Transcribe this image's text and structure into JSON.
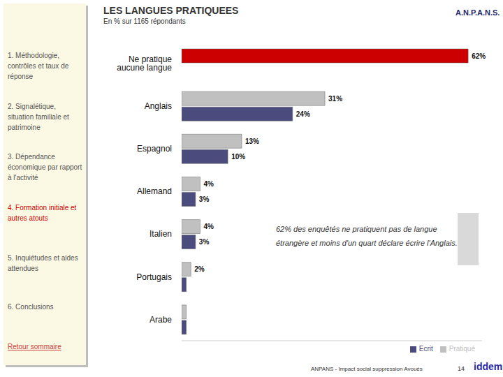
{
  "header": {
    "title": "LES LANGUES PRATIQUEES",
    "subtitle": "En % sur 1165 répondants",
    "brand": "A.N.P.A.N.S."
  },
  "sidebar": {
    "items": [
      {
        "text": "1. Méthodologie, contrôles et taux de réponse",
        "highlight": false
      },
      {
        "text": "2. Signalétique, situation familiale et patrimoine",
        "highlight": false
      },
      {
        "text": "3. Dépendance économique par rapport à l'activité",
        "highlight": false
      },
      {
        "text": "4. Formation initiale et autres atouts",
        "highlight": true
      },
      {
        "text": "5. Inquiétudes et aides attendues",
        "highlight": false
      },
      {
        "text": "6. Conclusions",
        "highlight": false
      }
    ],
    "link": "Retour sommaire"
  },
  "chart_data": {
    "type": "bar",
    "orientation": "horizontal",
    "categories": [
      "Ne pratique aucune langue",
      "Anglais",
      "Espagnol",
      "Allemand",
      "Italien",
      "Portugais",
      "Arabe"
    ],
    "series": [
      {
        "name": "Pratiqué",
        "color": "#c0c0c0",
        "colors": [
          "#cc0000",
          "#c0c0c0",
          "#c0c0c0",
          "#c0c0c0",
          "#c0c0c0",
          "#c0c0c0",
          "#c0c0c0"
        ],
        "values": [
          62,
          31,
          13,
          4,
          4,
          2,
          1
        ],
        "value_labels": [
          "62%",
          "31%",
          "13%",
          "4%",
          "4%",
          "2%",
          null
        ]
      },
      {
        "name": "Ecrit",
        "color": "#4b4b7d",
        "values": [
          null,
          24,
          10,
          3,
          3,
          1,
          1
        ],
        "value_labels": [
          null,
          "24%",
          "10%",
          "3%",
          "3%",
          null,
          null
        ]
      }
    ],
    "xlim": [
      0,
      65
    ],
    "data_labels": true,
    "tick_labels": "y",
    "legend": "bottom right",
    "grid": false
  },
  "annotation": "62% des enquêtés ne pratiquent pas de langue étrangère et moins d'un quart déclare écrire l'Anglais.",
  "footer": {
    "text": "ANPANS - Impact social suppression Avoués",
    "page": 14,
    "logo": "iddem"
  }
}
